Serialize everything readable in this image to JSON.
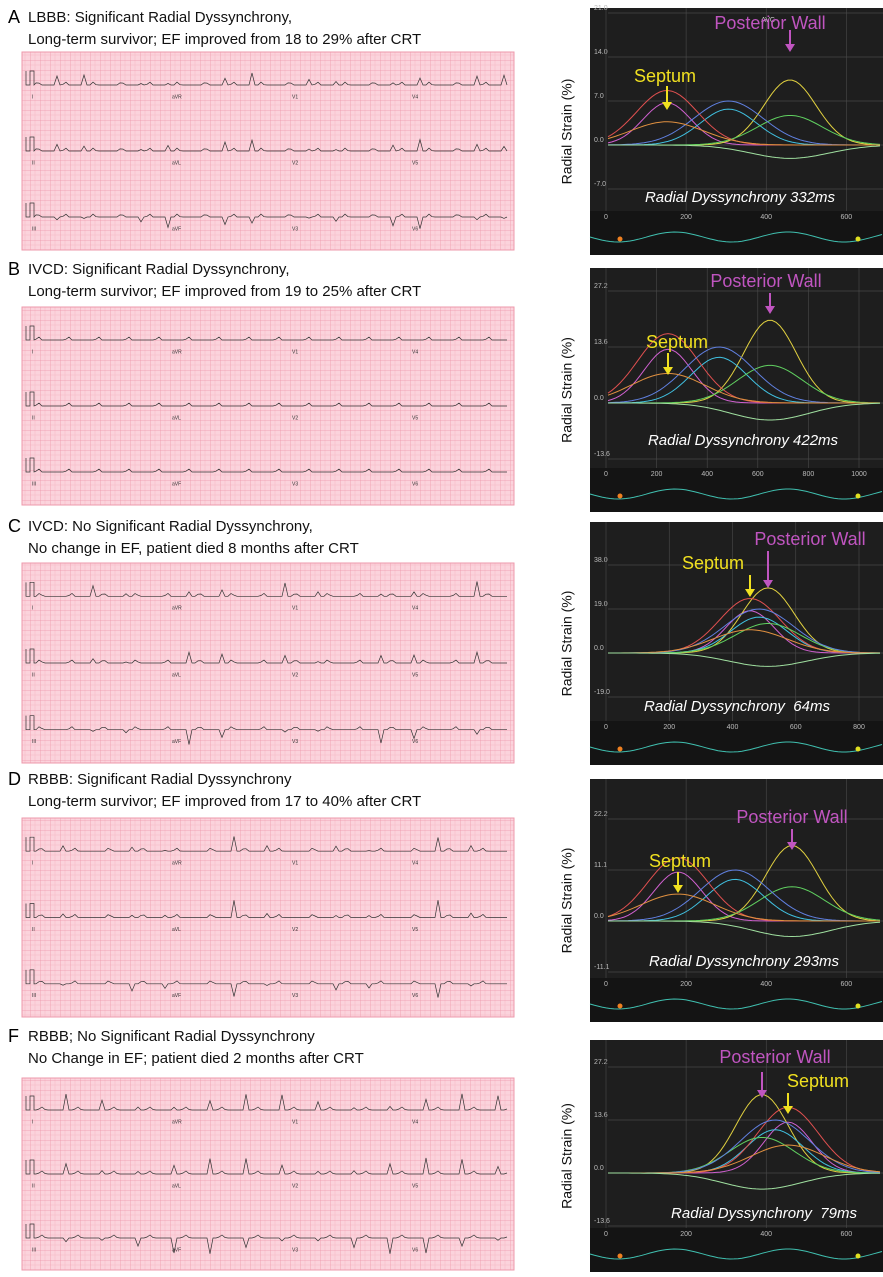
{
  "ecg_leads": [
    "I",
    "aVR",
    "V1",
    "V4",
    "II",
    "aVL",
    "V2",
    "V5",
    "III",
    "aVF",
    "V3",
    "V6"
  ],
  "panels": [
    {
      "letter": "A",
      "title_lines": [
        "LBBB: Significant Radial Dyssynchrony,",
        "Long-term survivor; EF improved from 18 to 29% after CRT"
      ],
      "strain": {
        "y_label": "Radial Strain (%)",
        "y_ticks": [
          "21.0",
          "14.0",
          "7.0",
          "0.0",
          "-7.0"
        ],
        "x_ticks": [
          "0",
          "200",
          "400",
          "600"
        ],
        "marker": "AVC",
        "posterior_label": "Posterior Wall",
        "septum_label": "Septum",
        "dyssynchrony_label": "Radial Dyssynchrony 332ms"
      }
    },
    {
      "letter": "B",
      "title_lines": [
        "IVCD: Significant Radial Dyssynchrony,",
        "Long-term survivor; EF improved from 19 to 25% after CRT"
      ],
      "strain": {
        "y_label": "Radial Strain (%)",
        "y_ticks": [
          "27.2",
          "13.6",
          "0.0",
          "-13.6"
        ],
        "x_ticks": [
          "0",
          "200",
          "400",
          "600",
          "800",
          "1000"
        ],
        "posterior_label": "Posterior Wall",
        "septum_label": "Septum",
        "dyssynchrony_label": "Radial Dyssynchrony 422ms"
      }
    },
    {
      "letter": "C",
      "title_lines": [
        "IVCD: No Significant Radial Dyssynchrony,",
        "No change in EF, patient died 8 months after CRT"
      ],
      "strain": {
        "y_label": "Radial Strain (%)",
        "y_ticks": [
          "38.0",
          "19.0",
          "0.0",
          "-19.0"
        ],
        "x_ticks": [
          "0",
          "200",
          "400",
          "600",
          "800"
        ],
        "posterior_label": "Posterior Wall",
        "septum_label": "Septum",
        "dyssynchrony_label": "Radial Dyssynchrony  64ms"
      }
    },
    {
      "letter": "D",
      "title_lines": [
        "RBBB: Significant Radial Dyssynchrony",
        "Long-term survivor; EF improved from 17 to 40% after CRT"
      ],
      "strain": {
        "y_label": "Radial Strain (%)",
        "y_ticks": [
          "22.2",
          "11.1",
          "0.0",
          "-11.1"
        ],
        "x_ticks": [
          "0",
          "200",
          "400",
          "600"
        ],
        "posterior_label": "Posterior Wall",
        "septum_label": "Septum",
        "dyssynchrony_label": "Radial Dyssynchrony 293ms"
      }
    },
    {
      "letter": "F",
      "title_lines": [
        "RBBB; No Significant Radial Dyssynchrony",
        "No Change in EF; patient died 2 months after CRT"
      ],
      "strain": {
        "y_label": "Radial Strain (%)",
        "y_ticks": [
          "27.2",
          "13.6",
          "0.0",
          "-13.6"
        ],
        "x_ticks": [
          "0",
          "200",
          "400",
          "600"
        ],
        "posterior_label": "Posterior Wall",
        "septum_label": "Septum",
        "dyssynchrony_label": "Radial Dyssynchrony  79ms"
      }
    }
  ]
}
